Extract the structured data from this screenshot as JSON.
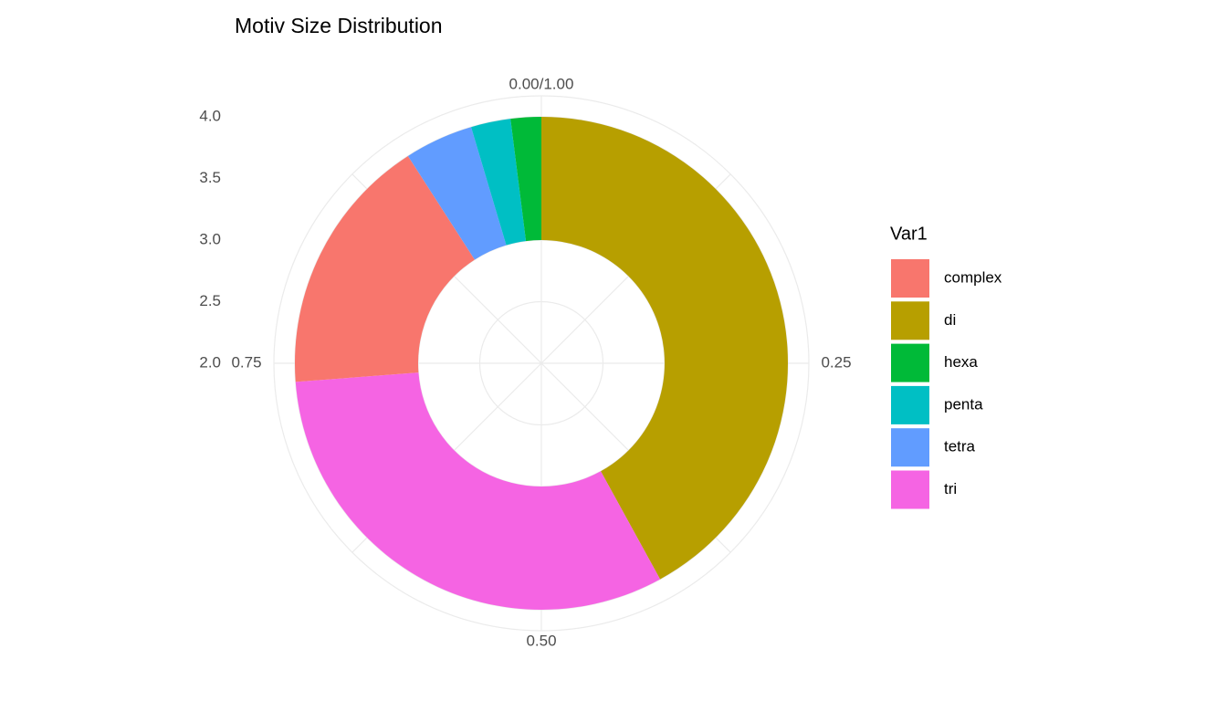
{
  "chart_data": {
    "type": "pie",
    "title": "Motiv Size Distribution",
    "legend_title": "Var1",
    "categories": [
      "di",
      "tri",
      "complex",
      "tetra",
      "penta",
      "hexa"
    ],
    "values": [
      0.42,
      0.318,
      0.171,
      0.045,
      0.026,
      0.02
    ],
    "colors": [
      "#B79F00",
      "#F564E3",
      "#F8766D",
      "#619CFF",
      "#00BFC4",
      "#00BA38"
    ],
    "rlim": [
      2,
      4
    ],
    "rticks": [
      2.0,
      2.5,
      3.0,
      3.5,
      4.0
    ],
    "angle_lim": [
      0,
      1
    ],
    "angle_ticks": [
      {
        "value": 0,
        "label": "0.00/1.00"
      },
      {
        "value": 0.25,
        "label": "0.25"
      },
      {
        "value": 0.5,
        "label": "0.50"
      },
      {
        "value": 0.75,
        "label": "0.75"
      }
    ],
    "grid": true,
    "legend_position": "right"
  }
}
